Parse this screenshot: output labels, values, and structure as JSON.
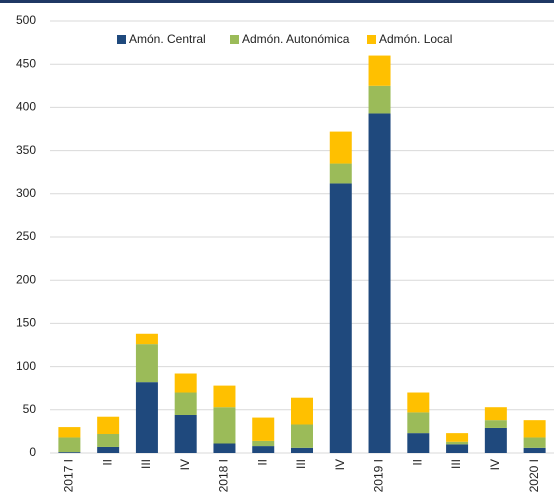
{
  "chart_data": {
    "type": "stacked_bar",
    "categories": [
      "2017 I",
      "II",
      "III",
      "IV",
      "2018 I",
      "II",
      "III",
      "IV",
      "2019 I",
      "II",
      "III",
      "IV",
      "2020 I"
    ],
    "series": [
      {
        "name": "Amón. Central",
        "color": "#1f497d",
        "values": [
          1,
          7,
          82,
          44,
          11,
          8,
          6,
          312,
          393,
          23,
          10,
          29,
          6
        ]
      },
      {
        "name": "Admón. Autonómica",
        "color": "#9bbb59",
        "values": [
          17,
          15,
          44,
          26,
          42,
          6,
          27,
          23,
          32,
          24,
          3,
          9,
          12
        ]
      },
      {
        "name": "Admón. Local",
        "color": "#ffc000",
        "values": [
          12,
          20,
          12,
          22,
          25,
          27,
          31,
          37,
          35,
          23,
          10,
          15,
          20
        ]
      }
    ],
    "ylim": [
      0,
      500
    ],
    "yticks": [
      0,
      50,
      100,
      150,
      200,
      250,
      300,
      350,
      400,
      450,
      500
    ],
    "grid": true
  }
}
